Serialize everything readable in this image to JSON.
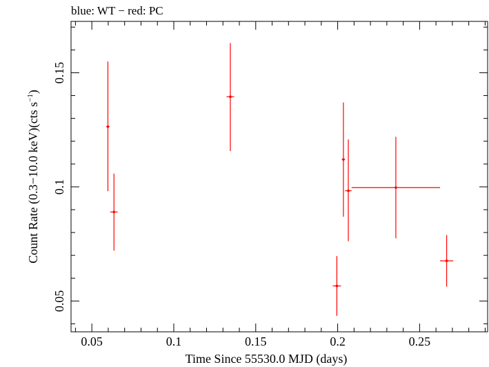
{
  "chart_data": {
    "type": "scatter",
    "title": "blue: WT − red: PC",
    "xlabel": "Time Since 55530.0 MJD (days)",
    "ylabel_main": "Count Rate (0.3−10.0 keV)(cts s",
    "ylabel_sup": "−1",
    "ylabel_close": ")",
    "xlim": [
      0.0373,
      0.2915
    ],
    "ylim": [
      0.0365,
      0.1725
    ],
    "x_ticks": [
      0.05,
      0.1,
      0.15,
      0.2,
      0.25
    ],
    "x_tick_labels": [
      "0.05",
      "0.1",
      "0.15",
      "0.2",
      "0.25"
    ],
    "y_ticks": [
      0.05,
      0.1,
      0.15
    ],
    "y_tick_labels": [
      "0.05",
      "0.1",
      "0.15"
    ],
    "grid": false,
    "series": [
      {
        "color": "#ff0000",
        "points": [
          {
            "x": 0.0598,
            "x_lo": 0.0588,
            "x_hi": 0.0608,
            "y": 0.1264,
            "y_lo": 0.0981,
            "y_hi": 0.1549
          },
          {
            "x": 0.0635,
            "x_lo": 0.0612,
            "x_hi": 0.0658,
            "y": 0.089,
            "y_lo": 0.0721,
            "y_hi": 0.1058
          },
          {
            "x": 0.1345,
            "x_lo": 0.1322,
            "x_hi": 0.1368,
            "y": 0.1395,
            "y_lo": 0.1157,
            "y_hi": 0.163
          },
          {
            "x": 0.1995,
            "x_lo": 0.197,
            "x_hi": 0.202,
            "y": 0.0566,
            "y_lo": 0.0435,
            "y_hi": 0.0697
          },
          {
            "x": 0.2035,
            "x_lo": 0.2025,
            "x_hi": 0.2045,
            "y": 0.112,
            "y_lo": 0.0869,
            "y_hi": 0.137
          },
          {
            "x": 0.2065,
            "x_lo": 0.2045,
            "x_hi": 0.2085,
            "y": 0.0983,
            "y_lo": 0.0762,
            "y_hi": 0.1208
          },
          {
            "x": 0.2355,
            "x_lo": 0.2085,
            "x_hi": 0.2625,
            "y": 0.0997,
            "y_lo": 0.0775,
            "y_hi": 0.1219
          },
          {
            "x": 0.2665,
            "x_lo": 0.2625,
            "x_hi": 0.2705,
            "y": 0.0676,
            "y_lo": 0.0563,
            "y_hi": 0.0789
          }
        ]
      }
    ]
  }
}
